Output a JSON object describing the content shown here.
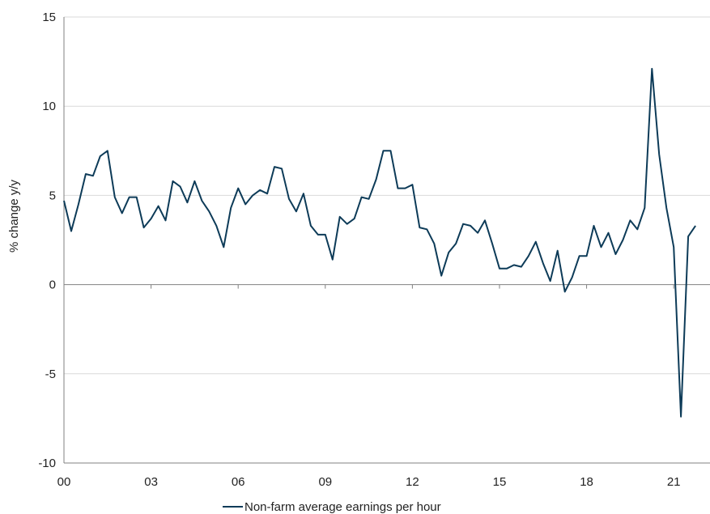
{
  "chart_data": {
    "type": "line",
    "ylabel": "% change y/y",
    "ylim": [
      -10,
      15
    ],
    "yticks": [
      -10,
      -5,
      0,
      5,
      10,
      15
    ],
    "xlim": [
      2000.0,
      2022.25
    ],
    "xtick_values": [
      2000,
      2003,
      2006,
      2009,
      2012,
      2015,
      2018,
      2021
    ],
    "xtick_labels": [
      "00",
      "03",
      "06",
      "09",
      "12",
      "15",
      "18",
      "21"
    ],
    "grid": "horizontal",
    "legend_position": "bottom",
    "colors": {
      "line": "#0d3b58",
      "grid": "#d9d9d9",
      "axis": "#808080"
    },
    "series": [
      {
        "name": "Non-farm average earnings per hour",
        "x": [
          2000.0,
          2000.25,
          2000.5,
          2000.75,
          2001.0,
          2001.25,
          2001.5,
          2001.75,
          2002.0,
          2002.25,
          2002.5,
          2002.75,
          2003.0,
          2003.25,
          2003.5,
          2003.75,
          2004.0,
          2004.25,
          2004.5,
          2004.75,
          2005.0,
          2005.25,
          2005.5,
          2005.75,
          2006.0,
          2006.25,
          2006.5,
          2006.75,
          2007.0,
          2007.25,
          2007.5,
          2007.75,
          2008.0,
          2008.25,
          2008.5,
          2008.75,
          2009.0,
          2009.25,
          2009.5,
          2009.75,
          2010.0,
          2010.25,
          2010.5,
          2010.75,
          2011.0,
          2011.25,
          2011.5,
          2011.75,
          2012.0,
          2012.25,
          2012.5,
          2012.75,
          2013.0,
          2013.25,
          2013.5,
          2013.75,
          2014.0,
          2014.25,
          2014.5,
          2014.75,
          2015.0,
          2015.25,
          2015.5,
          2015.75,
          2016.0,
          2016.25,
          2016.5,
          2016.75,
          2017.0,
          2017.25,
          2017.5,
          2017.75,
          2018.0,
          2018.25,
          2018.5,
          2018.75,
          2019.0,
          2019.25,
          2019.5,
          2019.75,
          2020.0,
          2020.25,
          2020.5,
          2020.75,
          2021.0,
          2021.25,
          2021.5,
          2021.75
        ],
        "values": [
          4.7,
          3.0,
          4.5,
          6.2,
          6.1,
          7.2,
          7.5,
          4.9,
          4.0,
          4.9,
          4.9,
          3.2,
          3.7,
          4.4,
          3.6,
          5.8,
          5.5,
          4.6,
          5.8,
          4.7,
          4.1,
          3.3,
          2.1,
          4.3,
          5.4,
          4.5,
          5.0,
          5.3,
          5.1,
          6.6,
          6.5,
          4.8,
          4.1,
          5.1,
          3.3,
          2.8,
          2.8,
          1.4,
          3.8,
          3.4,
          3.7,
          4.9,
          4.8,
          5.9,
          7.5,
          7.5,
          5.4,
          5.4,
          5.6,
          3.2,
          3.1,
          2.3,
          0.5,
          1.8,
          2.3,
          3.4,
          3.3,
          2.9,
          3.6,
          2.3,
          0.9,
          0.9,
          1.1,
          1.0,
          1.6,
          2.4,
          1.2,
          0.2,
          1.9,
          -0.4,
          0.4,
          1.6,
          1.6,
          3.3,
          2.1,
          2.9,
          1.7,
          2.5,
          3.6,
          3.1,
          4.3,
          12.1,
          7.3,
          4.3,
          2.1,
          -7.4,
          2.7,
          3.3
        ]
      }
    ]
  }
}
